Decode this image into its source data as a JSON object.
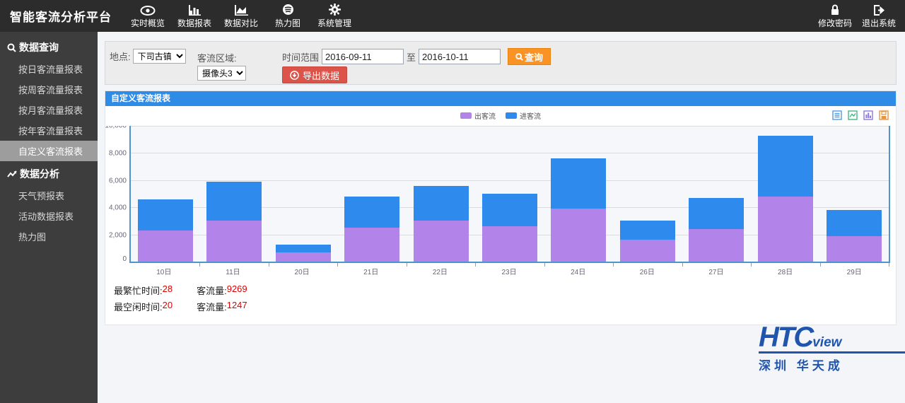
{
  "topbar": {
    "title": "智能客流分析平台",
    "menu": [
      {
        "label": "实时概览",
        "icon": "eye-icon"
      },
      {
        "label": "数据报表",
        "icon": "bar-chart-icon"
      },
      {
        "label": "数据对比",
        "icon": "area-chart-icon"
      },
      {
        "label": "热力图",
        "icon": "heatmap-icon"
      },
      {
        "label": "系统管理",
        "icon": "gear-icon"
      }
    ],
    "right": [
      {
        "label": "修改密码",
        "icon": "lock-icon"
      },
      {
        "label": "退出系统",
        "icon": "sign-out-icon"
      }
    ]
  },
  "sidebar": {
    "sections": [
      {
        "header": "数据查询",
        "icon": "search-icon",
        "items": [
          {
            "label": "按日客流量报表",
            "active": false
          },
          {
            "label": "按周客流量报表",
            "active": false
          },
          {
            "label": "按月客流量报表",
            "active": false
          },
          {
            "label": "按年客流量报表",
            "active": false
          },
          {
            "label": "自定义客流报表",
            "active": true
          }
        ]
      },
      {
        "header": "数据分析",
        "icon": "line-chart-icon",
        "items": [
          {
            "label": "天气预报表",
            "active": false
          },
          {
            "label": "活动数据报表",
            "active": false
          },
          {
            "label": "热力图",
            "active": false
          }
        ]
      }
    ]
  },
  "filters": {
    "location_label": "地点:",
    "location_value": "下司古镇",
    "area_label": "客流区域:",
    "camera_value": "摄像头3",
    "range_label": "时间范围",
    "date_from": "2016-09-11",
    "to_label": "至",
    "date_to": "2016-10-11",
    "query_label": "查询",
    "export_label": "导出数据"
  },
  "panel": {
    "title": "自定义客流报表",
    "toolbox": [
      "data-view-icon",
      "switch-to-line-icon",
      "switch-to-bar-icon",
      "save-image-icon"
    ]
  },
  "chart_data": {
    "type": "bar",
    "stacked": true,
    "title": "自定义客流报表",
    "categories": [
      "10日",
      "11日",
      "20日",
      "21日",
      "22日",
      "23日",
      "24日",
      "26日",
      "27日",
      "28日",
      "29日"
    ],
    "series": [
      {
        "name": "出客流",
        "color": "#b283e8",
        "values": [
          2300,
          3000,
          700,
          2500,
          3000,
          2600,
          3900,
          1600,
          2400,
          4800,
          1900
        ]
      },
      {
        "name": "进客流",
        "color": "#2f8aee",
        "values": [
          2300,
          2900,
          547,
          2300,
          2600,
          2400,
          3700,
          1400,
          2300,
          4469,
          1900
        ]
      }
    ],
    "ylim": [
      0,
      10000
    ],
    "yticks": [
      "0",
      "2,000",
      "4,000",
      "6,000",
      "8,000",
      "10,000"
    ],
    "xlabel": "",
    "ylabel": "",
    "grid": true,
    "legend_position": "top-center"
  },
  "stats": {
    "rows": [
      {
        "label1": "最繁忙时间:",
        "value1": "28",
        "label2": "客流量:",
        "value2": "9269"
      },
      {
        "label1": "最空闲时间:",
        "value1": "20",
        "label2": "客流量:",
        "value2": "1247"
      }
    ]
  },
  "logo": {
    "main": "HTC",
    "sub": "view",
    "caption": "深圳  华天成"
  }
}
